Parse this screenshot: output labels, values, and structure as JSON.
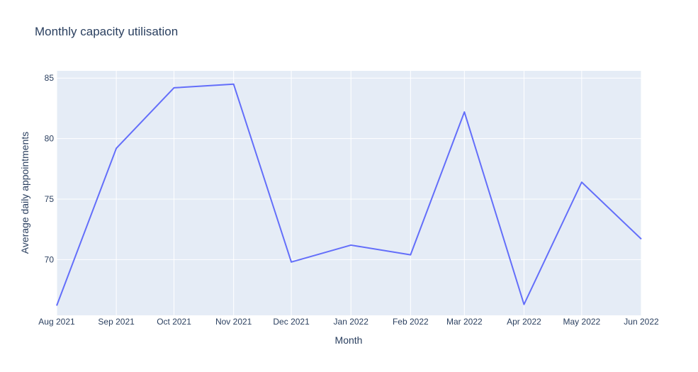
{
  "chart_data": {
    "type": "line",
    "title": "Monthly capacity utilisation",
    "xlabel": "Month",
    "ylabel": "Average daily appointments",
    "categories": [
      "Aug 2021",
      "Sep 2021",
      "Oct 2021",
      "Nov 2021",
      "Dec 2021",
      "Jan 2022",
      "Feb 2022",
      "Mar 2022",
      "Apr 2022",
      "May 2022",
      "Jun 2022"
    ],
    "x": [
      "2021-08-01",
      "2021-09-01",
      "2021-10-01",
      "2021-11-01",
      "2021-12-01",
      "2022-01-01",
      "2022-02-01",
      "2022-03-01",
      "2022-04-01",
      "2022-05-01",
      "2022-06-01"
    ],
    "series": [
      {
        "values": [
          66.2,
          79.2,
          84.2,
          84.5,
          69.8,
          71.2,
          70.4,
          82.2,
          66.3,
          76.4,
          71.7
        ]
      }
    ],
    "ylim": [
      65.4,
      85.6
    ],
    "yticks": [
      70,
      75,
      80,
      85
    ],
    "grid": true,
    "colors": {
      "line": "#636efa",
      "plot_bg": "#e5ecf6",
      "grid": "#ffffff",
      "text": "#2a3f5f"
    }
  }
}
